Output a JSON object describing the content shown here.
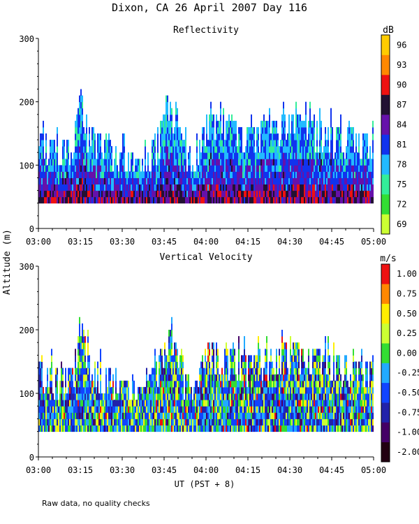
{
  "title": "Dixon, CA 26 April 2007  Day 116",
  "footer_note": "Raw data, no quality checks",
  "shared_ylabel": "Altitude (m)",
  "shared_xlabel": "UT  (PST + 8)",
  "chart_data": [
    {
      "type": "heatmap",
      "title": "Reflectivity",
      "units": "dB",
      "xlim": [
        "03:00",
        "05:00"
      ],
      "x_ticks": [
        "03:00",
        "03:15",
        "03:30",
        "03:45",
        "04:00",
        "04:15",
        "04:30",
        "04:45",
        "05:00"
      ],
      "ylim": [
        0,
        300
      ],
      "y_ticks": [
        0,
        100,
        200,
        300
      ],
      "colorbar": {
        "ticks": [
          "69",
          "72",
          "75",
          "78",
          "81",
          "84",
          "87",
          "90",
          "93",
          "96"
        ],
        "colors": [
          "#ccff33",
          "#33dd33",
          "#33ee99",
          "#22bbff",
          "#1133ee",
          "#6611aa",
          "#221133",
          "#ee1111",
          "#ff8800",
          "#ffcc00"
        ]
      },
      "echo_base_m": 40,
      "echo_top_profile": [
        {
          "t": "03:00",
          "top_m": 150
        },
        {
          "t": "03:05",
          "top_m": 140
        },
        {
          "t": "03:12",
          "top_m": 140
        },
        {
          "t": "03:15",
          "top_m": 220
        },
        {
          "t": "03:18",
          "top_m": 160
        },
        {
          "t": "03:30",
          "top_m": 120
        },
        {
          "t": "03:38",
          "top_m": 110
        },
        {
          "t": "03:47",
          "top_m": 200
        },
        {
          "t": "03:55",
          "top_m": 100
        },
        {
          "t": "04:00",
          "top_m": 180
        },
        {
          "t": "04:15",
          "top_m": 160
        },
        {
          "t": "04:30",
          "top_m": 180
        },
        {
          "t": "04:45",
          "top_m": 160
        },
        {
          "t": "05:00",
          "top_m": 150
        }
      ]
    },
    {
      "type": "heatmap",
      "title": "Vertical Velocity",
      "units": "m/s",
      "xlim": [
        "03:00",
        "05:00"
      ],
      "x_ticks": [
        "03:00",
        "03:15",
        "03:30",
        "03:45",
        "04:00",
        "04:15",
        "04:30",
        "04:45",
        "05:00"
      ],
      "ylim": [
        0,
        300
      ],
      "y_ticks": [
        0,
        100,
        200,
        300
      ],
      "colorbar": {
        "ticks": [
          "-2.00",
          "-1.00",
          "-0.75",
          "-0.50",
          "-0.25",
          "0.00",
          "0.25",
          "0.50",
          "0.75",
          "1.00"
        ],
        "colors": [
          "#220011",
          "#440066",
          "#2222aa",
          "#1144ff",
          "#22aaff",
          "#33dd33",
          "#ccff33",
          "#ffee00",
          "#ff8800",
          "#ee1111"
        ]
      },
      "echo_base_m": 40,
      "echo_top_profile": [
        {
          "t": "03:00",
          "top_m": 150
        },
        {
          "t": "03:05",
          "top_m": 140
        },
        {
          "t": "03:12",
          "top_m": 140
        },
        {
          "t": "03:15",
          "top_m": 220
        },
        {
          "t": "03:18",
          "top_m": 160
        },
        {
          "t": "03:30",
          "top_m": 120
        },
        {
          "t": "03:38",
          "top_m": 110
        },
        {
          "t": "03:47",
          "top_m": 200
        },
        {
          "t": "03:55",
          "top_m": 100
        },
        {
          "t": "04:00",
          "top_m": 180
        },
        {
          "t": "04:15",
          "top_m": 160
        },
        {
          "t": "04:30",
          "top_m": 180
        },
        {
          "t": "04:45",
          "top_m": 160
        },
        {
          "t": "05:00",
          "top_m": 150
        }
      ]
    }
  ]
}
